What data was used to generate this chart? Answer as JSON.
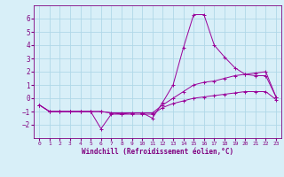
{
  "x": [
    0,
    1,
    2,
    3,
    4,
    5,
    6,
    7,
    8,
    9,
    10,
    11,
    12,
    13,
    14,
    15,
    16,
    17,
    18,
    19,
    20,
    21,
    22,
    23
  ],
  "line1": [
    -0.5,
    -1.0,
    -1.0,
    -1.0,
    -1.0,
    -1.0,
    -2.3,
    -1.2,
    -1.2,
    -1.1,
    -1.1,
    -1.5,
    -0.3,
    1.0,
    3.8,
    6.3,
    6.3,
    4.0,
    3.1,
    2.3,
    1.8,
    1.7,
    1.7,
    0.1
  ],
  "line2": [
    -0.5,
    -1.0,
    -1.0,
    -1.0,
    -1.0,
    -1.0,
    -1.0,
    -1.1,
    -1.1,
    -1.1,
    -1.1,
    -1.1,
    -0.5,
    0.0,
    0.5,
    1.0,
    1.2,
    1.3,
    1.5,
    1.7,
    1.8,
    1.9,
    2.0,
    0.1
  ],
  "line3": [
    -0.5,
    -1.0,
    -1.0,
    -1.0,
    -1.0,
    -1.0,
    -1.0,
    -1.1,
    -1.2,
    -1.2,
    -1.2,
    -1.2,
    -0.7,
    -0.4,
    -0.2,
    0.0,
    0.1,
    0.2,
    0.3,
    0.4,
    0.5,
    0.5,
    0.5,
    -0.1
  ],
  "line_color": "#990099",
  "bg_color": "#d8eff8",
  "grid_color": "#b0d8e8",
  "xlabel": "Windchill (Refroidissement éolien,°C)",
  "xlabel_color": "#800080",
  "tick_color": "#800080",
  "ylim": [
    -3,
    7
  ],
  "xlim": [
    -0.5,
    23.5
  ],
  "yticks": [
    -2,
    -1,
    0,
    1,
    2,
    3,
    4,
    5,
    6
  ],
  "xticks": [
    0,
    1,
    2,
    3,
    4,
    5,
    6,
    7,
    8,
    9,
    10,
    11,
    12,
    13,
    14,
    15,
    16,
    17,
    18,
    19,
    20,
    21,
    22,
    23
  ]
}
